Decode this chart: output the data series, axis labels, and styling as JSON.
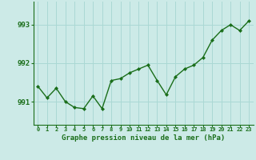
{
  "x": [
    0,
    1,
    2,
    3,
    4,
    5,
    6,
    7,
    8,
    9,
    10,
    11,
    12,
    13,
    14,
    15,
    16,
    17,
    18,
    19,
    20,
    21,
    22,
    23
  ],
  "y": [
    991.4,
    991.1,
    991.35,
    991.0,
    990.85,
    990.82,
    991.15,
    990.82,
    991.55,
    991.6,
    991.75,
    991.85,
    991.95,
    991.55,
    991.18,
    991.65,
    991.85,
    991.95,
    992.15,
    992.6,
    992.85,
    993.0,
    992.85,
    993.1
  ],
  "line_color": "#1a6e1a",
  "marker": "D",
  "marker_size": 2,
  "bg_color": "#cceae7",
  "grid_color": "#aad8d4",
  "xlabel": "Graphe pression niveau de la mer (hPa)",
  "xlabel_color": "#1a6e1a",
  "tick_color": "#1a6e1a",
  "ylim": [
    990.4,
    993.6
  ],
  "yticks": [
    991,
    992,
    993
  ],
  "xlim": [
    -0.5,
    23.5
  ],
  "line_width": 1.0,
  "xtick_fontsize": 5.0,
  "ytick_fontsize": 6.5,
  "xlabel_fontsize": 6.5
}
